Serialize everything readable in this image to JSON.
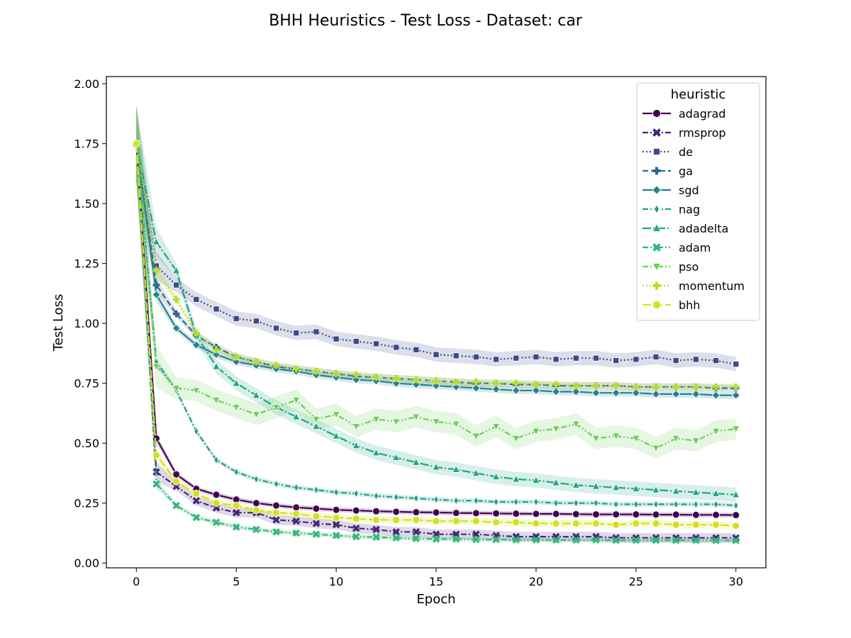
{
  "chart_data": {
    "type": "line",
    "title": "BHH Heuristics - Test Loss - Dataset: car",
    "xlabel": "Epoch",
    "ylabel": "Test Loss",
    "xlim": [
      -1.5,
      31.5
    ],
    "ylim": [
      -0.02,
      2.03
    ],
    "x_ticks": [
      0,
      5,
      10,
      15,
      20,
      25,
      30
    ],
    "x_tick_labels": [
      "0",
      "5",
      "10",
      "15",
      "20",
      "25",
      "30"
    ],
    "y_ticks": [
      0.0,
      0.25,
      0.5,
      0.75,
      1.0,
      1.25,
      1.5,
      1.75,
      2.0
    ],
    "y_tick_labels": [
      "0.00",
      "0.25",
      "0.50",
      "0.75",
      "1.00",
      "1.25",
      "1.50",
      "1.75",
      "2.00"
    ],
    "grid": false,
    "legend": {
      "title": "heuristic",
      "position": "top-right"
    },
    "x": [
      0,
      1,
      2,
      3,
      4,
      5,
      6,
      7,
      8,
      9,
      10,
      11,
      12,
      13,
      14,
      15,
      16,
      17,
      18,
      19,
      20,
      21,
      22,
      23,
      24,
      25,
      26,
      27,
      28,
      29,
      30
    ],
    "series": [
      {
        "name": "adagrad",
        "color": "#440154",
        "marker": "circle",
        "dash": "solid",
        "band": 0.01,
        "values": [
          1.75,
          0.52,
          0.37,
          0.31,
          0.285,
          0.265,
          0.25,
          0.24,
          0.232,
          0.227,
          0.222,
          0.219,
          0.216,
          0.214,
          0.212,
          0.211,
          0.209,
          0.208,
          0.207,
          0.206,
          0.205,
          0.205,
          0.204,
          0.203,
          0.203,
          0.203,
          0.202,
          0.202,
          0.201,
          0.201,
          0.2
        ]
      },
      {
        "name": "rmsprop",
        "color": "#482878",
        "marker": "x",
        "dash": "dashdot",
        "band": 0.02,
        "values": [
          1.75,
          0.38,
          0.32,
          0.26,
          0.23,
          0.21,
          0.21,
          0.18,
          0.175,
          0.165,
          0.16,
          0.145,
          0.14,
          0.13,
          0.13,
          0.12,
          0.12,
          0.12,
          0.115,
          0.11,
          0.11,
          0.11,
          0.11,
          0.11,
          0.105,
          0.105,
          0.105,
          0.105,
          0.105,
          0.105,
          0.105
        ]
      },
      {
        "name": "de",
        "color": "#3e4989",
        "marker": "square",
        "dash": "dotted",
        "band": 0.03,
        "values": [
          1.75,
          1.24,
          1.16,
          1.1,
          1.06,
          1.02,
          1.01,
          0.98,
          0.96,
          0.965,
          0.935,
          0.925,
          0.915,
          0.9,
          0.89,
          0.87,
          0.865,
          0.86,
          0.85,
          0.855,
          0.86,
          0.85,
          0.855,
          0.855,
          0.845,
          0.85,
          0.86,
          0.845,
          0.85,
          0.845,
          0.83
        ]
      },
      {
        "name": "ga",
        "color": "#31688e",
        "marker": "plus",
        "dash": "dashed",
        "band": 0.015,
        "values": [
          1.75,
          1.16,
          1.04,
          0.95,
          0.9,
          0.86,
          0.84,
          0.82,
          0.81,
          0.8,
          0.79,
          0.78,
          0.775,
          0.77,
          0.765,
          0.76,
          0.755,
          0.75,
          0.75,
          0.745,
          0.745,
          0.74,
          0.74,
          0.74,
          0.74,
          0.735,
          0.735,
          0.735,
          0.735,
          0.73,
          0.73
        ]
      },
      {
        "name": "sgd",
        "color": "#26828e",
        "marker": "diamond",
        "dash": "solid",
        "band": 0.015,
        "values": [
          1.75,
          1.12,
          0.98,
          0.91,
          0.87,
          0.84,
          0.825,
          0.81,
          0.8,
          0.785,
          0.775,
          0.765,
          0.76,
          0.75,
          0.745,
          0.74,
          0.735,
          0.73,
          0.725,
          0.72,
          0.72,
          0.715,
          0.715,
          0.71,
          0.71,
          0.71,
          0.705,
          0.705,
          0.705,
          0.7,
          0.7
        ]
      },
      {
        "name": "nag",
        "color": "#1f9e89",
        "marker": "thin-diamond",
        "dash": "dashdot",
        "band": 0.01,
        "values": [
          1.75,
          0.84,
          0.72,
          0.55,
          0.43,
          0.38,
          0.35,
          0.33,
          0.315,
          0.305,
          0.295,
          0.29,
          0.28,
          0.275,
          0.27,
          0.265,
          0.26,
          0.26,
          0.255,
          0.255,
          0.255,
          0.25,
          0.25,
          0.25,
          0.245,
          0.245,
          0.245,
          0.245,
          0.245,
          0.245,
          0.24
        ]
      },
      {
        "name": "adadelta",
        "color": "#20a486",
        "marker": "triangle-up",
        "dash": "longdashdot",
        "band": 0.03,
        "values": [
          1.75,
          1.34,
          1.22,
          0.95,
          0.82,
          0.75,
          0.7,
          0.65,
          0.61,
          0.57,
          0.53,
          0.49,
          0.46,
          0.44,
          0.42,
          0.4,
          0.39,
          0.375,
          0.36,
          0.35,
          0.345,
          0.335,
          0.325,
          0.32,
          0.315,
          0.31,
          0.305,
          0.3,
          0.295,
          0.29,
          0.285
        ]
      },
      {
        "name": "adam",
        "color": "#35b779",
        "marker": "x-filled",
        "dash": "dashdotdot",
        "band": 0.01,
        "values": [
          1.75,
          0.33,
          0.24,
          0.19,
          0.17,
          0.15,
          0.14,
          0.13,
          0.125,
          0.12,
          0.115,
          0.11,
          0.108,
          0.105,
          0.102,
          0.1,
          0.1,
          0.098,
          0.098,
          0.097,
          0.097,
          0.096,
          0.096,
          0.096,
          0.095,
          0.095,
          0.095,
          0.095,
          0.095,
          0.094,
          0.094
        ]
      },
      {
        "name": "pso",
        "color": "#6ece58",
        "marker": "triangle-down",
        "dash": "dashdotdot",
        "band": 0.045,
        "values": [
          1.75,
          0.82,
          0.73,
          0.72,
          0.68,
          0.65,
          0.62,
          0.65,
          0.68,
          0.6,
          0.62,
          0.57,
          0.6,
          0.59,
          0.61,
          0.59,
          0.58,
          0.53,
          0.57,
          0.52,
          0.55,
          0.56,
          0.58,
          0.52,
          0.53,
          0.52,
          0.48,
          0.52,
          0.51,
          0.55,
          0.56
        ]
      },
      {
        "name": "momentum",
        "color": "#b5de2b",
        "marker": "plus-filled",
        "dash": "dotted",
        "band": 0.015,
        "values": [
          1.75,
          1.22,
          1.1,
          0.96,
          0.89,
          0.86,
          0.84,
          0.825,
          0.81,
          0.8,
          0.79,
          0.785,
          0.775,
          0.77,
          0.765,
          0.76,
          0.755,
          0.755,
          0.75,
          0.75,
          0.745,
          0.745,
          0.74,
          0.74,
          0.74,
          0.735,
          0.735,
          0.735,
          0.735,
          0.735,
          0.735
        ]
      },
      {
        "name": "bhh",
        "color": "#d2e21b",
        "marker": "circle",
        "dash": "longdash",
        "band": 0.015,
        "values": [
          1.75,
          0.45,
          0.34,
          0.29,
          0.25,
          0.24,
          0.22,
          0.21,
          0.205,
          0.195,
          0.19,
          0.185,
          0.18,
          0.18,
          0.18,
          0.175,
          0.175,
          0.175,
          0.17,
          0.17,
          0.165,
          0.165,
          0.165,
          0.165,
          0.16,
          0.165,
          0.165,
          0.16,
          0.16,
          0.16,
          0.155
        ]
      }
    ]
  }
}
